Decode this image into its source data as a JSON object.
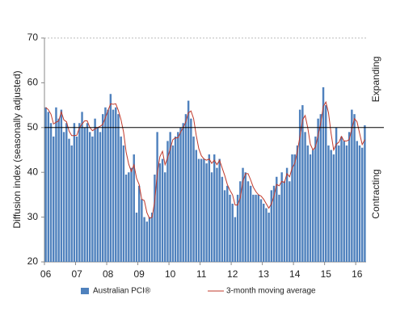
{
  "chart_data": {
    "type": "bar",
    "y_label": "Diffusion index (seasonally adjusted)",
    "annotations": [
      "Expanding",
      "Contracting"
    ],
    "reference_line": 50,
    "ylim": [
      20,
      70
    ],
    "yticks": [
      20,
      30,
      40,
      50,
      60,
      70
    ],
    "categories": [
      "06",
      null,
      null,
      null,
      null,
      null,
      null,
      null,
      null,
      null,
      null,
      null,
      "07",
      null,
      null,
      null,
      null,
      null,
      null,
      null,
      null,
      null,
      null,
      null,
      "08",
      null,
      null,
      null,
      null,
      null,
      null,
      null,
      null,
      null,
      null,
      null,
      "09",
      null,
      null,
      null,
      null,
      null,
      null,
      null,
      null,
      null,
      null,
      null,
      "10",
      null,
      null,
      null,
      null,
      null,
      null,
      null,
      null,
      null,
      null,
      null,
      "11",
      null,
      null,
      null,
      null,
      null,
      null,
      null,
      null,
      null,
      null,
      null,
      "12",
      null,
      null,
      null,
      null,
      null,
      null,
      null,
      null,
      null,
      null,
      null,
      "13",
      null,
      null,
      null,
      null,
      null,
      null,
      null,
      null,
      null,
      null,
      null,
      "14",
      null,
      null,
      null,
      null,
      null,
      null,
      null,
      null,
      null,
      null,
      null,
      "15",
      null,
      null,
      null,
      null,
      null,
      null,
      null,
      null,
      null,
      null,
      null,
      "16",
      null,
      null,
      null
    ],
    "series": [
      {
        "name": "Australian PCI®",
        "type": "bar",
        "color": "#4f81bd",
        "values": [
          54.5,
          53.5,
          51,
          48,
          54.5,
          52,
          54,
          49,
          51,
          47.5,
          46,
          51,
          48,
          51,
          53.5,
          50,
          51,
          49,
          48,
          52,
          50,
          49,
          53,
          54.5,
          54,
          57.5,
          54,
          54.5,
          53,
          48,
          46,
          39.5,
          40,
          41,
          44,
          31,
          37,
          34,
          30,
          29,
          30,
          31,
          39.5,
          49,
          42,
          43,
          40,
          47,
          49,
          46,
          48,
          49,
          50,
          51,
          53,
          56,
          52,
          48,
          45,
          43,
          43,
          43,
          42,
          44,
          40,
          44,
          41,
          43,
          39,
          36,
          37,
          35,
          33,
          30,
          35,
          38,
          41,
          40,
          38,
          37,
          35,
          35,
          35,
          34,
          33,
          32,
          31,
          36,
          37,
          39,
          35,
          40,
          38,
          41,
          38,
          44,
          44,
          46,
          54,
          55,
          49,
          46,
          44,
          45,
          48,
          52,
          53,
          59,
          55,
          46,
          45,
          44,
          50,
          46,
          48,
          47,
          46,
          49,
          54,
          53,
          47,
          46,
          45.5,
          50.5
        ]
      },
      {
        "name": "3-month moving average",
        "type": "line",
        "color": "#c0392b",
        "values": [
          54.5,
          54,
          53,
          50.8,
          51.2,
          51.5,
          53.5,
          51.7,
          51.3,
          49.2,
          48.2,
          48.2,
          48.3,
          50,
          50.8,
          51.5,
          51.5,
          50,
          49.3,
          49.7,
          50,
          50.3,
          50.7,
          52.2,
          53.8,
          55.3,
          55.2,
          55.3,
          53.8,
          51.8,
          49,
          44.5,
          41.8,
          40.2,
          41.7,
          38.7,
          37.3,
          34,
          33.7,
          31,
          29.7,
          30,
          33.5,
          39.8,
          43.5,
          44.7,
          41.7,
          43.3,
          45.3,
          47.3,
          47.7,
          47.7,
          49,
          50,
          51.3,
          53.3,
          53.7,
          52,
          48.3,
          45.3,
          43.7,
          43,
          42.7,
          43,
          42,
          42.7,
          41.7,
          42.7,
          41,
          39.3,
          37.3,
          36,
          35,
          32.7,
          32.7,
          34.3,
          38,
          39.7,
          39.7,
          38.3,
          36.7,
          35.7,
          35,
          34.7,
          34,
          33,
          32,
          33,
          34.7,
          37.3,
          37,
          38,
          37.7,
          39.7,
          39,
          41,
          42,
          44.7,
          48,
          51.7,
          52.7,
          50,
          46.3,
          45,
          45.7,
          48.3,
          51,
          54.7,
          55.7,
          53.3,
          48.7,
          45,
          46.3,
          46.7,
          48,
          47,
          47,
          47.3,
          49.7,
          52,
          51.3,
          48.7,
          46.2,
          47.3
        ]
      }
    ]
  }
}
